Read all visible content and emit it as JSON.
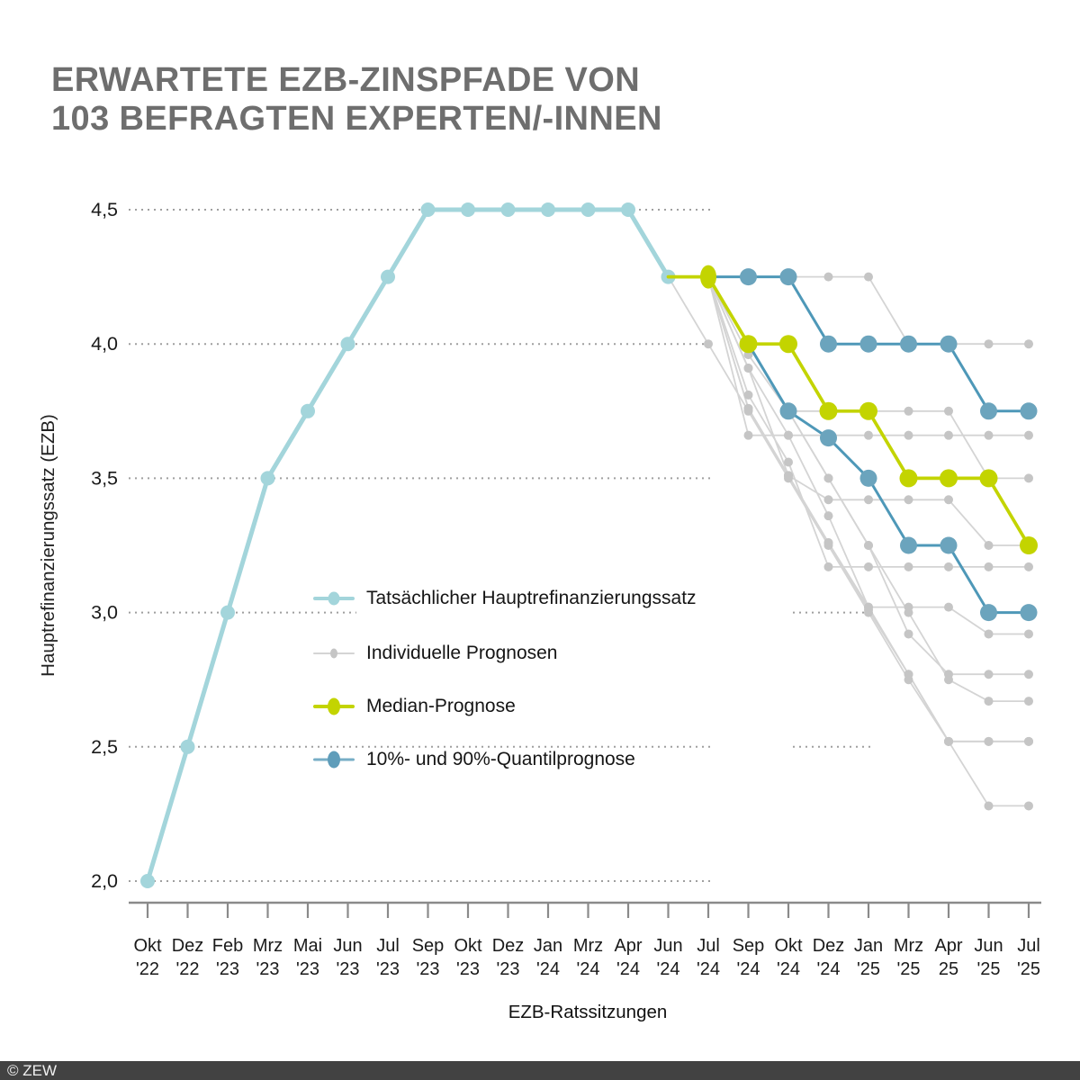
{
  "title": {
    "line1": "ERWARTETE EZB-ZINSPFADE VON",
    "line2": "103 BEFRAGTEN EXPERTEN/-INNEN"
  },
  "footer": {
    "copyright": "© ZEW"
  },
  "legend": {
    "items": [
      {
        "key": "actual",
        "label": "Tatsächlicher Hauptrefinanzierungssatz"
      },
      {
        "key": "individual",
        "label": "Individuelle Prognosen"
      },
      {
        "key": "median",
        "label": "Median-Prognose"
      },
      {
        "key": "quantile",
        "label": "10%- und 90%-Quantilprognose"
      }
    ]
  },
  "chart_data": {
    "type": "line",
    "title": "Erwartete EZB-Zinspfade von 103 befragten Experten/-innen",
    "xlabel": "EZB-Ratssitzungen",
    "ylabel": "Hauptrefinanzierungssatz (EZB)",
    "ylim": [
      2.0,
      4.5
    ],
    "grid": "dotted-horizontal",
    "legend_position": "center-left",
    "yticks": [
      {
        "value": 4.5,
        "label": "4,5"
      },
      {
        "value": 4.0,
        "label": "4,0"
      },
      {
        "value": 3.5,
        "label": "3,5"
      },
      {
        "value": 3.0,
        "label": "3,0"
      },
      {
        "value": 2.5,
        "label": "2,5"
      },
      {
        "value": 2.0,
        "label": "2,0"
      }
    ],
    "x_months": [
      "Okt",
      "Dez",
      "Feb",
      "Mrz",
      "Mai",
      "Jun",
      "Jul",
      "Sep",
      "Okt",
      "Dez",
      "Jan",
      "Mrz",
      "Apr",
      "Jun",
      "Jul",
      "Sep",
      "Okt",
      "Dez",
      "Jan",
      "Mrz",
      "Apr",
      "Jun",
      "Jul"
    ],
    "x_years": [
      "'22",
      "'22",
      "'23",
      "'23",
      "'23",
      "'23",
      "'23",
      "'23",
      "'23",
      "'23",
      "'24",
      "'24",
      "'24",
      "'24",
      "'24",
      "'24",
      "'24",
      "'24",
      "'25",
      "'25",
      "25",
      "'25",
      "'25"
    ],
    "colors": {
      "actual": "#a3d5db",
      "individual_line": "#d4d4d4",
      "individual_dot": "#c5c5c5",
      "median": "#c3d400",
      "quantile_line": "#4e98b8",
      "quantile_dot": "#6ba4bd",
      "grid": "#9f9f9f",
      "axis": "#8a8a8a",
      "tick_text": "#1a1a1a"
    },
    "series": {
      "actual": {
        "name": "Tatsächlicher Hauptrefinanzierungssatz",
        "start_index": 0,
        "values": [
          2.0,
          2.5,
          3.0,
          3.5,
          3.75,
          4.0,
          4.25,
          4.5,
          4.5,
          4.5,
          4.5,
          4.5,
          4.5,
          4.25
        ]
      },
      "median": {
        "name": "Median-Prognose",
        "start_index": 13,
        "values": [
          4.25,
          4.25,
          4.0,
          4.0,
          3.75,
          3.75,
          3.5,
          3.5,
          3.5,
          3.25
        ]
      },
      "quantile90": {
        "name": "90%-Quantilprognose",
        "start_index": 14,
        "values": [
          4.25,
          4.25,
          4.25,
          4.0,
          4.0,
          4.0,
          4.0,
          3.75,
          3.75
        ]
      },
      "quantile10": {
        "name": "10%-Quantilprognose",
        "start_index": 14,
        "values": [
          4.25,
          4.0,
          3.75,
          3.65,
          3.5,
          3.25,
          3.25,
          3.0,
          3.0
        ]
      },
      "individual": {
        "name": "Individuelle Prognosen",
        "paths": [
          {
            "start_index": 14,
            "values": [
              4.25,
              4.25,
              4.25,
              4.25,
              4.25,
              4.0,
              4.0,
              4.0,
              4.0
            ]
          },
          {
            "start_index": 14,
            "values": [
              4.25,
              3.66,
              3.66,
              3.66,
              3.66,
              3.66,
              3.66,
              3.66,
              3.66
            ]
          },
          {
            "start_index": 14,
            "values": [
              4.25,
              3.96,
              3.75,
              3.75,
              3.75,
              3.75,
              3.75,
              3.5,
              3.5
            ]
          },
          {
            "start_index": 14,
            "values": [
              4.25,
              3.91,
              3.51,
              3.42,
              3.42,
              3.42,
              3.42,
              3.25,
              3.25
            ]
          },
          {
            "start_index": 14,
            "values": [
              4.25,
              3.81,
              3.56,
              3.17,
              3.17,
              3.17,
              3.17,
              3.17,
              3.17
            ]
          },
          {
            "start_index": 14,
            "values": [
              4.25,
              3.76,
              3.51,
              3.26,
              3.02,
              3.02,
              3.02,
              2.92,
              2.92
            ]
          },
          {
            "start_index": 14,
            "values": [
              4.25,
              4.0,
              3.75,
              3.5,
              3.25,
              2.92,
              2.77,
              2.77,
              2.77
            ]
          },
          {
            "start_index": 14,
            "values": [
              4.25,
              3.76,
              3.51,
              3.26,
              3.01,
              2.77,
              2.52,
              2.52,
              2.52
            ]
          },
          {
            "start_index": 14,
            "values": [
              4.25,
              4.0,
              3.75,
              3.5,
              3.25,
              3.0,
              2.75,
              2.67,
              2.67
            ]
          },
          {
            "start_index": 14,
            "values": [
              4.25,
              3.91,
              3.66,
              3.36,
              3.02,
              2.77,
              2.52,
              2.28,
              2.28
            ]
          },
          {
            "start_index": 13,
            "values": [
              4.25,
              4.0,
              3.75,
              3.5,
              3.25,
              3.0,
              2.75,
              2.52,
              2.52,
              2.52
            ]
          }
        ]
      }
    }
  }
}
